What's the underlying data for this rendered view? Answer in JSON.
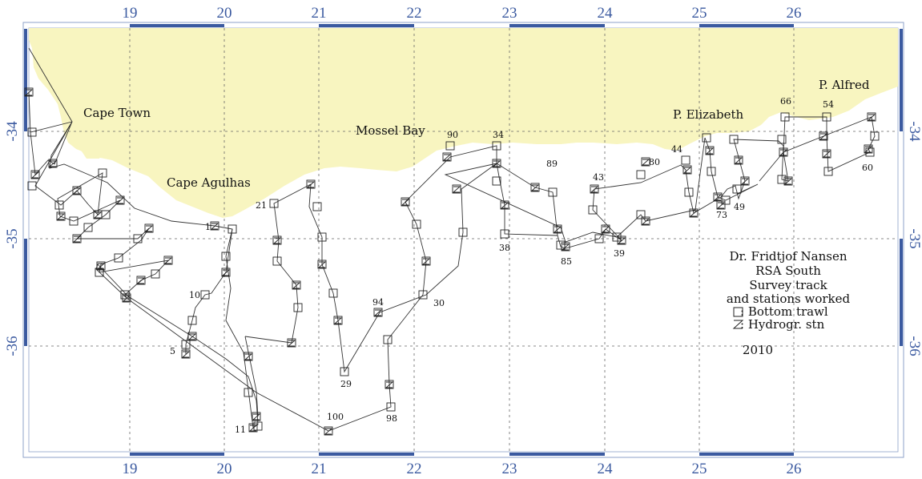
{
  "map": {
    "longitude_ticks": [
      "19",
      "20",
      "21",
      "22",
      "23",
      "24",
      "25",
      "26"
    ],
    "latitude_ticks_left": [
      "-34",
      "-35",
      "-36"
    ],
    "latitude_ticks_right": [
      "-34",
      "-35",
      "-36"
    ],
    "colors": {
      "land": "#f8f5c0",
      "frame": "#3b5aa0",
      "track": "#333333"
    }
  },
  "places": {
    "cape_town": "Cape Town",
    "cape_agulhas": "Cape Agulhas",
    "mossel_bay": "Mossel Bay",
    "p_elizabeth": "P. Elizabeth",
    "p_alfred": "P. Alfred"
  },
  "stations": {
    "s1": "1",
    "s5": "5",
    "s10": "10",
    "s11": "11",
    "s21": "21",
    "s29": "29",
    "s30": "30",
    "s34": "34",
    "s38": "38",
    "s39": "39",
    "s43": "43",
    "s44": "44",
    "s49": "49",
    "s54": "54",
    "s60": "60",
    "s66": "66",
    "s73": "73",
    "s80": "80",
    "s85": "85",
    "s89": "89",
    "s90": "90",
    "s94": "94",
    "s98": "98",
    "s100": "100"
  },
  "legend": {
    "line1": "Dr. Fridtjof Nansen",
    "line2": "RSA South",
    "line3": "Survey track",
    "line4": "and stations worked",
    "bottom_trawl": ": Bottom trawl",
    "hydro": ": Hydrogr. stn",
    "year": "2010"
  }
}
